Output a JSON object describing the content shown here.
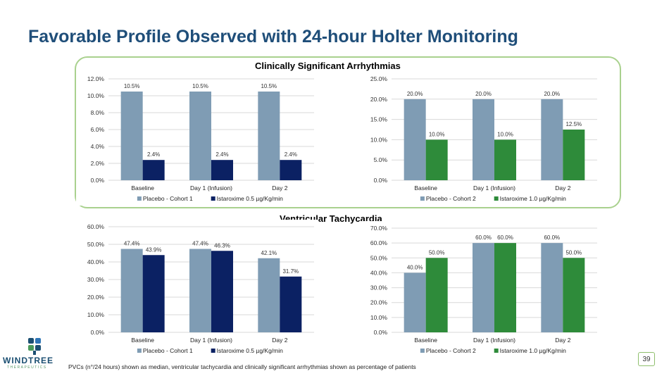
{
  "slide": {
    "title": "Favorable Profile Observed with 24-hour Holter Monitoring",
    "section_top": "Clinically Significant Arrhythmias",
    "section_bottom": "Ventricular Tachycardia",
    "footnote": "PVCs (n°/24 hours) shown as median, ventricular tachycardia and clinically significant arrhythmias shown as percentage of patients",
    "page_number": "39",
    "logo_text": "WINDTREE",
    "logo_subtext": "THERAPEUTICS"
  },
  "colors": {
    "placebo": "#7f9cb4",
    "istaroxime_05": "#0b2163",
    "istaroxime_10": "#2e8b3a",
    "grid": "#d9d9d9",
    "frame": "#a9d18e",
    "title": "#1f4e79"
  },
  "chart_data": [
    {
      "id": "arr-c1",
      "type": "bar",
      "categories": [
        "Baseline",
        "Day 1 (Infusion)",
        "Day 2"
      ],
      "yticks": [
        "0.0%",
        "2.0%",
        "4.0%",
        "6.0%",
        "8.0%",
        "10.0%",
        "12.0%"
      ],
      "ylim": [
        0,
        12
      ],
      "series": [
        {
          "name": "Placebo - Cohort 1",
          "color": "#7f9cb4",
          "values": [
            10.5,
            10.5,
            10.5
          ],
          "labels": [
            "10.5%",
            "10.5%",
            "10.5%"
          ]
        },
        {
          "name": "Istaroxime 0.5 µg/Kg/min",
          "color": "#0b2163",
          "values": [
            2.4,
            2.4,
            2.4
          ],
          "labels": [
            "2.4%",
            "2.4%",
            "2.4%"
          ]
        }
      ]
    },
    {
      "id": "arr-c2",
      "type": "bar",
      "categories": [
        "Baseline",
        "Day 1 (Infusion)",
        "Day 2"
      ],
      "yticks": [
        "0.0%",
        "5.0%",
        "10.0%",
        "15.0%",
        "20.0%",
        "25.0%"
      ],
      "ylim": [
        0,
        25
      ],
      "series": [
        {
          "name": "Placebo - Cohort 2",
          "color": "#7f9cb4",
          "values": [
            20.0,
            20.0,
            20.0
          ],
          "labels": [
            "20.0%",
            "20.0%",
            "20.0%"
          ]
        },
        {
          "name": "Istaroxime 1.0 µg/Kg/min",
          "color": "#2e8b3a",
          "values": [
            10.0,
            10.0,
            12.5
          ],
          "labels": [
            "10.0%",
            "10.0%",
            "12.5%"
          ]
        }
      ]
    },
    {
      "id": "vt-c1",
      "type": "bar",
      "categories": [
        "Baseline",
        "Day 1 (Infusion)",
        "Day 2"
      ],
      "yticks": [
        "0.0%",
        "10.0%",
        "20.0%",
        "30.0%",
        "40.0%",
        "50.0%",
        "60.0%"
      ],
      "ylim": [
        0,
        60
      ],
      "series": [
        {
          "name": "Placebo - Cohort 1",
          "color": "#7f9cb4",
          "values": [
            47.4,
            47.4,
            42.1
          ],
          "labels": [
            "47.4%",
            "47.4%",
            "42.1%"
          ]
        },
        {
          "name": "Istaroxime 0.5 µg/Kg/min",
          "color": "#0b2163",
          "values": [
            43.9,
            46.3,
            31.7
          ],
          "labels": [
            "43.9%",
            "46.3%",
            "31.7%"
          ]
        }
      ]
    },
    {
      "id": "vt-c2",
      "type": "bar",
      "categories": [
        "Baseline",
        "Day 1 (Infusion)",
        "Day 2"
      ],
      "yticks": [
        "0.0%",
        "10.0%",
        "20.0%",
        "30.0%",
        "40.0%",
        "50.0%",
        "60.0%",
        "70.0%"
      ],
      "ylim": [
        0,
        70
      ],
      "series": [
        {
          "name": "Placebo - Cohort 2",
          "color": "#7f9cb4",
          "values": [
            40.0,
            60.0,
            60.0
          ],
          "labels": [
            "40.0%",
            "60.0%",
            "60.0%"
          ]
        },
        {
          "name": "Istaroxime 1.0 µg/Kg/min",
          "color": "#2e8b3a",
          "values": [
            50.0,
            60.0,
            50.0
          ],
          "labels": [
            "50.0%",
            "60.0%",
            "50.0%"
          ]
        }
      ]
    }
  ]
}
